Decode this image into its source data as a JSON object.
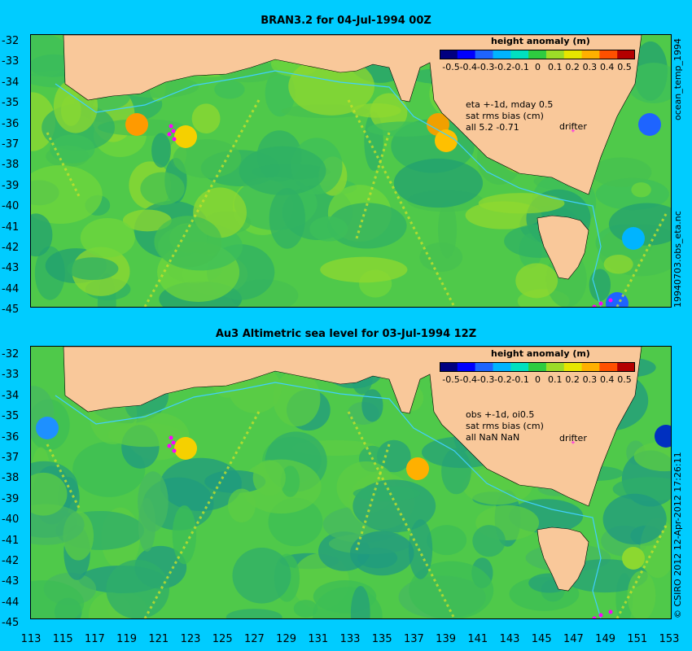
{
  "panels": [
    {
      "title": "BRAN3.2 for 04-Jul-1994 00Z",
      "colorbar_title": "height anomaly (m)",
      "stats": [
        "eta +-1d, mday 0.5",
        "sat rms bias (cm)",
        "all 5.2 -0.71"
      ],
      "drifter_label": "drifter"
    },
    {
      "title": "Au3 Altimetric sea level  for 03-Jul-1994 12Z",
      "colorbar_title": "height anomaly (m)",
      "stats": [
        "obs +-1d, oi0.5",
        "sat rms bias (cm)",
        "all NaN NaN"
      ],
      "drifter_label": "drifter"
    }
  ],
  "colorbar_ticks": [
    "-0.5",
    "-0.4",
    "-0.3",
    "-0.2",
    "-0.1",
    "0",
    "0.1",
    "0.2",
    "0.3",
    "0.4",
    "0.5"
  ],
  "colorbar_colors": [
    "#000080",
    "#0000ff",
    "#1e64ff",
    "#00b4ff",
    "#00e0c0",
    "#2ecc40",
    "#9cdc28",
    "#e6e600",
    "#ffb000",
    "#ff5000",
    "#b40000"
  ],
  "y_ticks": [
    "-32",
    "-33",
    "-34",
    "-35",
    "-36",
    "-37",
    "-38",
    "-39",
    "-40",
    "-41",
    "-42",
    "-43",
    "-44",
    "-45"
  ],
  "x_ticks": [
    "113",
    "115",
    "117",
    "119",
    "121",
    "123",
    "125",
    "127",
    "129",
    "131",
    "133",
    "135",
    "137",
    "139",
    "141",
    "143",
    "145",
    "147",
    "149",
    "151",
    "153"
  ],
  "side_labels": {
    "top": "ocean_temp_1994",
    "middle": "19940703.obs_eta.nc",
    "bottom": "© CSIRO  2012   12-Apr-2012 17:26:11"
  },
  "colors": {
    "background": "#00ccff",
    "land": "#f9c89a",
    "ocean_base": "#4fc94a",
    "drifter": "#ff00ff",
    "contour": "#40d0ff"
  }
}
